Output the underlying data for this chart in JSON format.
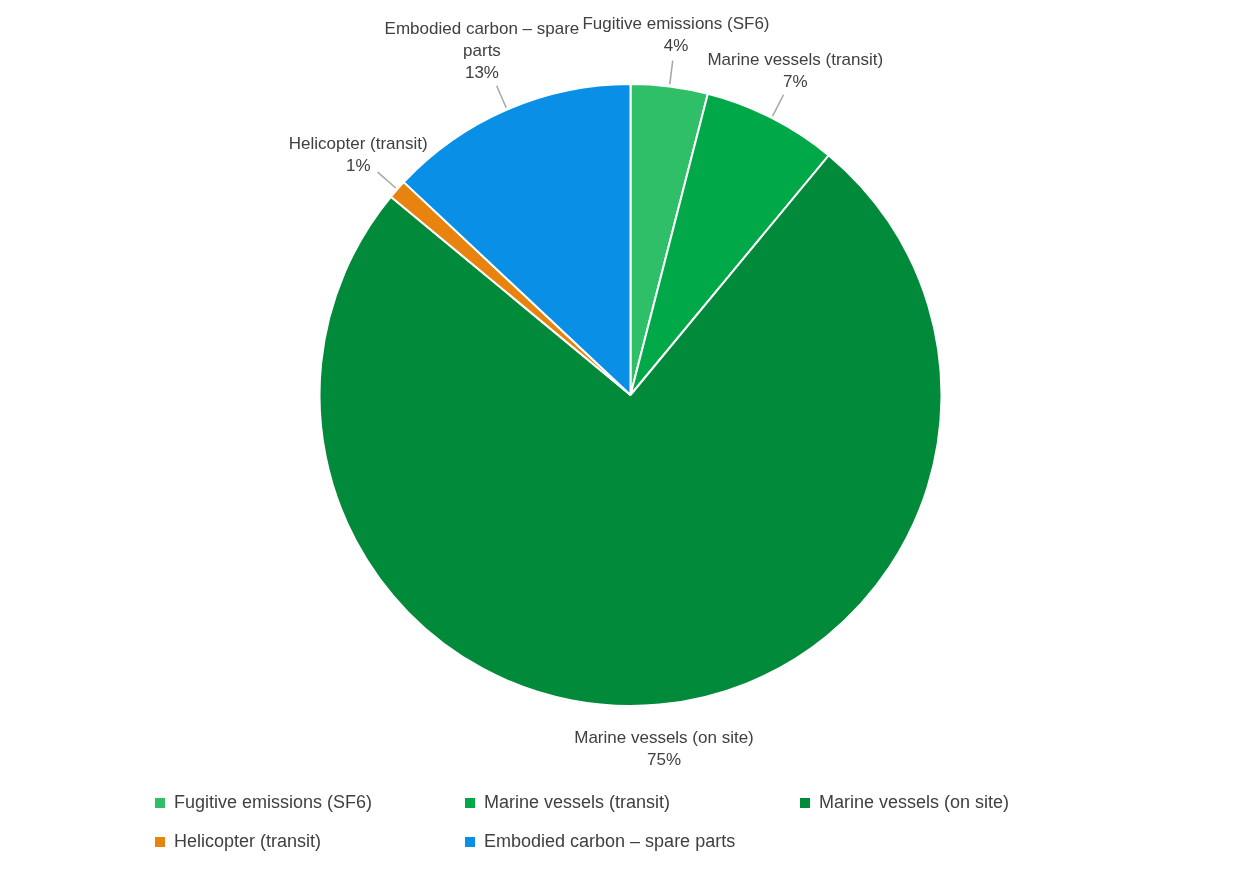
{
  "chart_data": {
    "type": "pie",
    "categories": [
      "Fugitive emissions (SF6)",
      "Marine vessels (transit)",
      "Marine vessels (on site)",
      "Helicopter (transit)",
      "Embodied carbon – spare parts"
    ],
    "values": [
      4,
      7,
      75,
      1,
      13
    ],
    "colors": [
      "#2ebf68",
      "#00a847",
      "#008a3a",
      "#e8830f",
      "#0a8fe6"
    ],
    "value_labels": [
      "4%",
      "7%",
      "75%",
      "1%",
      "13%"
    ],
    "legend": "bottom"
  }
}
